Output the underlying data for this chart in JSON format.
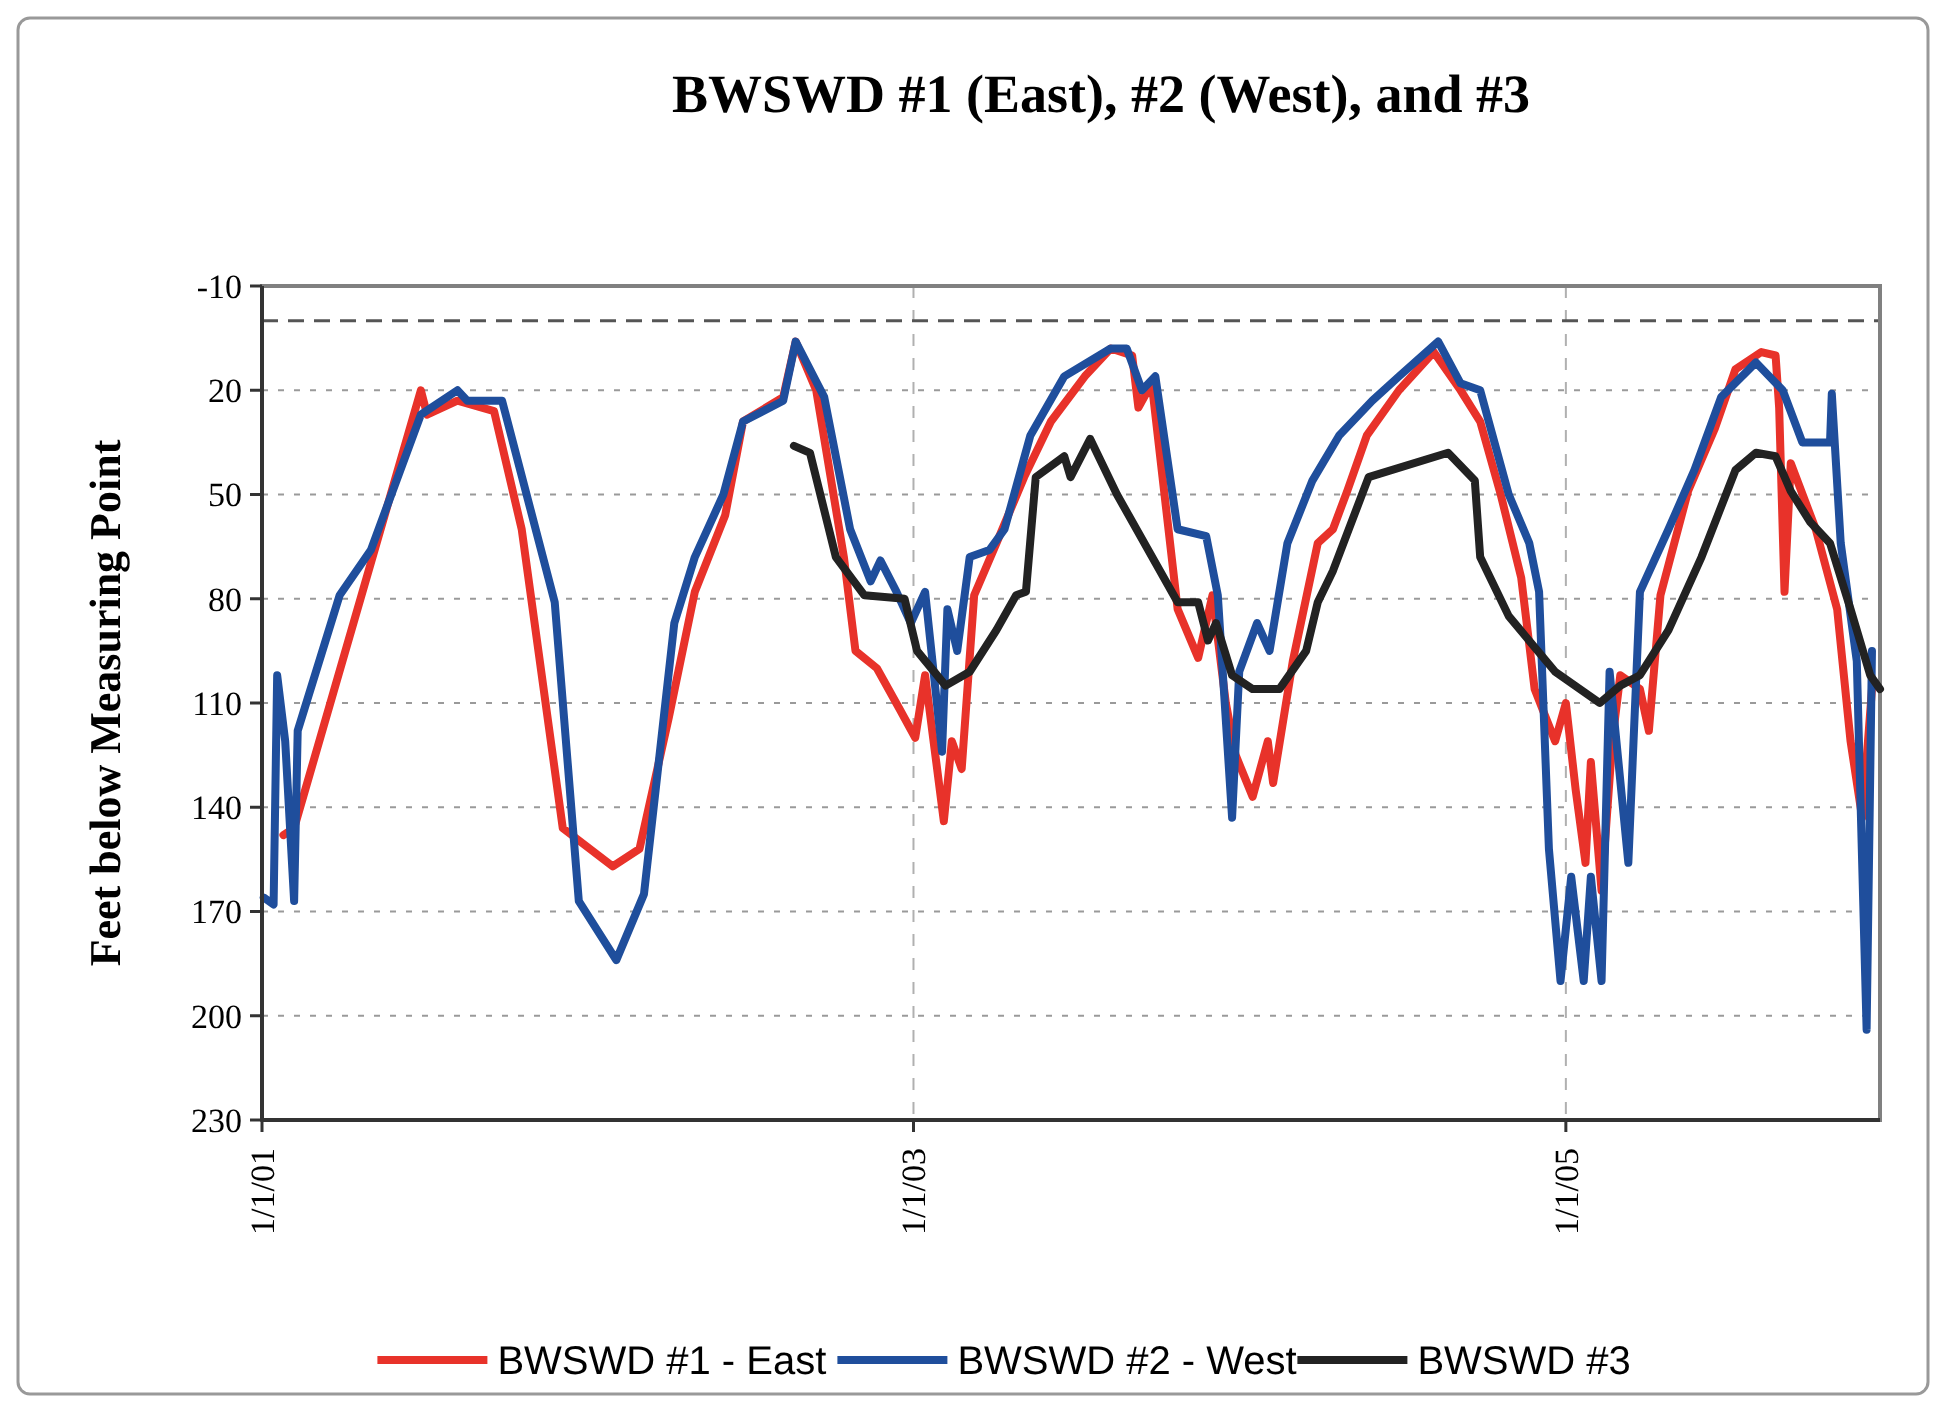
{
  "chart_data": {
    "type": "line",
    "title": "BWSWD #1 (East), #2 (West), and #3",
    "ylabel": "Feet below Measuring Point",
    "xlim": [
      "2001-01-01",
      "2005-12-19"
    ],
    "xticks": [
      {
        "value": "2001-01-01",
        "label": "1/1/01"
      },
      {
        "value": "2003-01-01",
        "label": "1/1/03"
      },
      {
        "value": "2005-01-01",
        "label": "1/1/05"
      }
    ],
    "ylim": [
      230,
      -10
    ],
    "yticks": [
      -10,
      20,
      50,
      80,
      110,
      140,
      170,
      200,
      230
    ],
    "grid": true,
    "legend": "bottom",
    "marker": "none",
    "line_style": "solid",
    "ref_lines": [
      {
        "axis": "y",
        "value": 0,
        "color": "#555555",
        "line_style": "dashed"
      }
    ],
    "series": [
      {
        "name": "BWSWD #1 - East",
        "color": "#e8322a",
        "x": [
          "2001-01-25",
          "2001-02-06",
          "2001-06-28",
          "2001-07-05",
          "2001-08-08",
          "2001-09-18",
          "2001-10-19",
          "2001-12-04",
          "2002-01-29",
          "2002-02-28",
          "2002-04-02",
          "2002-05-01",
          "2002-06-04",
          "2002-06-24",
          "2002-08-08",
          "2002-08-22",
          "2002-09-14",
          "2002-10-15",
          "2002-10-28",
          "2002-11-21",
          "2002-12-17",
          "2003-01-03",
          "2003-01-14",
          "2003-02-04",
          "2003-02-13",
          "2003-02-24",
          "2003-03-10",
          "2003-04-04",
          "2003-05-05",
          "2003-06-04",
          "2003-07-12",
          "2003-08-10",
          "2003-09-03",
          "2003-09-10",
          "2003-09-25",
          "2003-10-24",
          "2003-11-16",
          "2003-12-02",
          "2003-12-17",
          "2003-12-28",
          "2004-01-16",
          "2004-02-02",
          "2004-02-08",
          "2004-03-01",
          "2004-03-29",
          "2004-04-15",
          "2004-05-01",
          "2004-05-23",
          "2004-06-28",
          "2004-08-06",
          "2004-09-05",
          "2004-09-27",
          "2004-10-20",
          "2004-11-12",
          "2004-11-27",
          "2004-12-20",
          "2005-01-01",
          "2005-01-12",
          "2005-01-23",
          "2005-01-29",
          "2005-02-10",
          "2005-02-22",
          "2005-03-03",
          "2005-03-25",
          "2005-04-04",
          "2005-04-17",
          "2005-05-18",
          "2005-06-17",
          "2005-07-10",
          "2005-08-08",
          "2005-08-24",
          "2005-08-28",
          "2005-09-03",
          "2005-09-10",
          "2005-10-08",
          "2005-11-01",
          "2005-11-16",
          "2005-11-29",
          "2005-12-10"
        ],
        "values": [
          148,
          146,
          20,
          27,
          23,
          26,
          60,
          146,
          157,
          152,
          114,
          78,
          56,
          29,
          22,
          6,
          20,
          68,
          95,
          100,
          112,
          120,
          102,
          144,
          121,
          129,
          79,
          64,
          45,
          29,
          16,
          8,
          10,
          25,
          18,
          83,
          97,
          79,
          110,
          125,
          137,
          121,
          133,
          98,
          64,
          60,
          49,
          33,
          20,
          9,
          20,
          29,
          50,
          74,
          106,
          121,
          110,
          135,
          156,
          127,
          164,
          121,
          102,
          106,
          118,
          79,
          49,
          31,
          14,
          9,
          10,
          25,
          78,
          41,
          60,
          83,
          121,
          143,
          106
        ]
      },
      {
        "name": "BWSWD #2 - West",
        "color": "#1f4e9c",
        "x": [
          "2001-01-03",
          "2001-01-14",
          "2001-01-18",
          "2001-01-27",
          "2001-02-06",
          "2001-02-10",
          "2001-03-29",
          "2001-05-03",
          "2001-06-28",
          "2001-08-08",
          "2001-08-19",
          "2001-09-27",
          "2001-11-25",
          "2001-12-22",
          "2002-02-02",
          "2002-03-05",
          "2002-04-08",
          "2002-05-01",
          "2002-06-02",
          "2002-06-24",
          "2002-08-08",
          "2002-08-22",
          "2002-09-23",
          "2002-10-22",
          "2002-11-14",
          "2002-11-25",
          "2002-12-13",
          "2002-12-29",
          "2003-01-14",
          "2003-02-02",
          "2003-02-08",
          "2003-02-19",
          "2003-03-05",
          "2003-03-27",
          "2003-04-13",
          "2003-05-12",
          "2003-06-19",
          "2003-08-10",
          "2003-08-28",
          "2003-09-14",
          "2003-09-29",
          "2003-10-24",
          "2003-11-25",
          "2003-12-08",
          "2003-12-24",
          "2004-01-01",
          "2004-01-21",
          "2004-02-04",
          "2004-02-24",
          "2004-03-23",
          "2004-04-22",
          "2004-05-29",
          "2004-06-28",
          "2004-08-11",
          "2004-09-05",
          "2004-09-27",
          "2004-10-29",
          "2004-11-21",
          "2004-12-02",
          "2004-12-13",
          "2004-12-26",
          "2005-01-07",
          "2005-01-21",
          "2005-01-29",
          "2005-02-10",
          "2005-02-19",
          "2005-03-12",
          "2005-03-25",
          "2005-04-26",
          "2005-05-25",
          "2005-06-24",
          "2005-08-02",
          "2005-09-01",
          "2005-09-23",
          "2005-10-24",
          "2005-10-26",
          "2005-11-05",
          "2005-11-23",
          "2005-12-04",
          "2005-12-10"
        ],
        "values": [
          166,
          168,
          102,
          121,
          167,
          118,
          79,
          66,
          27,
          20,
          23,
          23,
          81,
          167,
          184,
          165,
          87,
          68,
          50,
          29,
          23,
          6,
          22,
          60,
          75,
          69,
          78,
          87,
          78,
          124,
          83,
          95,
          68,
          66,
          60,
          33,
          16,
          8,
          8,
          20,
          16,
          60,
          62,
          79,
          143,
          101,
          87,
          95,
          64,
          46,
          33,
          23,
          16,
          6,
          18,
          20,
          50,
          64,
          78,
          152,
          190,
          160,
          190,
          160,
          190,
          101,
          156,
          78,
          60,
          43,
          22,
          12,
          20,
          35,
          35,
          21,
          64,
          98,
          204,
          95
        ]
      },
      {
        "name": "BWSWD #3",
        "color": "#222222",
        "x": [
          "2002-08-20",
          "2002-09-07",
          "2002-10-06",
          "2002-11-07",
          "2002-12-22",
          "2003-01-05",
          "2003-02-06",
          "2003-03-05",
          "2003-04-04",
          "2003-04-26",
          "2003-05-07",
          "2003-05-18",
          "2003-06-19",
          "2003-06-26",
          "2003-07-18",
          "2003-08-17",
          "2003-10-24",
          "2003-11-16",
          "2003-11-27",
          "2003-12-06",
          "2003-12-24",
          "2004-01-16",
          "2004-02-15",
          "2004-03-16",
          "2004-03-29",
          "2004-04-15",
          "2004-05-25",
          "2004-08-22",
          "2004-09-21",
          "2004-09-27",
          "2004-10-29",
          "2004-12-20",
          "2005-02-08",
          "2005-03-03",
          "2005-03-25",
          "2005-04-26",
          "2005-06-02",
          "2005-07-10",
          "2005-08-02",
          "2005-08-24",
          "2005-09-10",
          "2005-10-02",
          "2005-10-24",
          "2005-11-16",
          "2005-12-08",
          "2005-12-19"
        ],
        "values": [
          36,
          38,
          68,
          79,
          80,
          95,
          105,
          101,
          89,
          79,
          78,
          45,
          39,
          45,
          34,
          50,
          81,
          81,
          92,
          87,
          102,
          106,
          106,
          95,
          81,
          72,
          45,
          38,
          46,
          68,
          85,
          101,
          110,
          105,
          102,
          89,
          68,
          43,
          38,
          39,
          49,
          58,
          64,
          83,
          102,
          106
        ]
      }
    ]
  }
}
